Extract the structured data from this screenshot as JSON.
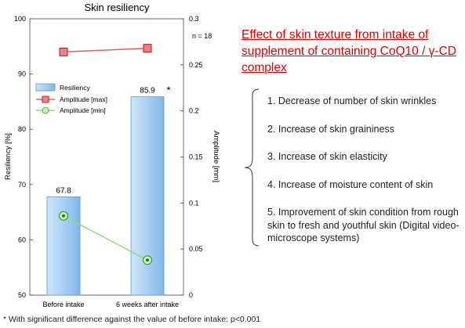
{
  "chart_data": {
    "type": "bar",
    "title": "Skin resiliency",
    "categories": [
      "Before intake",
      "6 weeks after intake"
    ],
    "series": [
      {
        "name": "Resiliency",
        "axis": "left",
        "kind": "bar",
        "values": [
          67.8,
          85.9
        ],
        "labels": [
          "67.8",
          "85.9"
        ],
        "color": "#9dc8f0"
      },
      {
        "name": "Amplitude [max]",
        "axis": "right",
        "kind": "line",
        "values": [
          0.264,
          0.268
        ],
        "color": "#e06060"
      },
      {
        "name": "Amplitude [min]",
        "axis": "right",
        "kind": "line",
        "values": [
          0.086,
          0.038
        ],
        "color": "#90e070"
      }
    ],
    "ylabel": "Resiliency [%]",
    "ylim": [
      50,
      100
    ],
    "yticks": [
      "50",
      "60",
      "70",
      "80",
      "90",
      "100"
    ],
    "y2label": "Amplitude [mm]",
    "y2lim": [
      0,
      0.3
    ],
    "y2ticks": [
      "0",
      "0.05",
      "0.1",
      "0.15",
      "0.2",
      "0.25",
      "0.3"
    ],
    "significance_mark": "*",
    "n_label": "n = 18",
    "legend_position": "top-left",
    "grid": false
  },
  "title_text": "Effect of skin texture from intake of supplement of containing CoQ10 / γ-CD complex",
  "effects": [
    "1. Decrease of number of skin wrinkles",
    "2. Increase of skin graininess",
    "3. Increase of skin elasticity",
    "4. Increase of moisture content of skin",
    "5. Improvement of skin condition from rough skin to fresh and youthful skin (Digital video-microscope systems)"
  ],
  "footnote": "* With significant difference against the value of before intake: p<0.001",
  "colors": {
    "bar_fill": "#9dc8f0",
    "bar_stroke": "#5a9ad8",
    "max_line": "#e06060",
    "min_line": "#90e070",
    "title_red": "#e00000"
  }
}
